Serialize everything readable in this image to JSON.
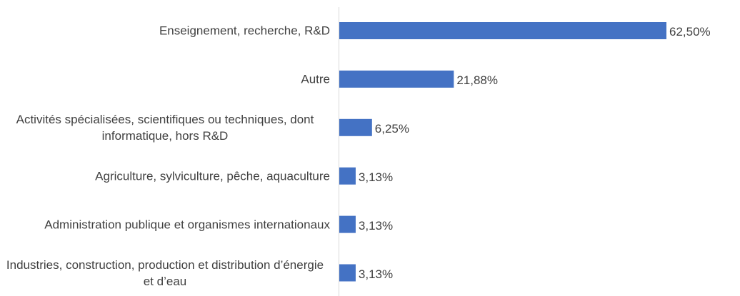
{
  "chart_data": {
    "type": "bar",
    "orientation": "horizontal",
    "categories": [
      "Enseignement, recherche, R&D",
      "Autre",
      "Activités spécialisées, scientifiques ou techniques, dont informatique, hors R&D",
      "Agriculture, sylviculture, pêche, aquaculture",
      "Administration publique et organismes internationaux",
      "Industries, construction, production et distribution d’énergie et d’eau"
    ],
    "values": [
      62.5,
      21.88,
      6.25,
      3.13,
      3.13,
      3.13
    ],
    "value_labels": [
      "62,50%",
      "21,88%",
      "6,25%",
      "3,13%",
      "3,13%",
      "3,13%"
    ],
    "color": "#4472c4"
  }
}
